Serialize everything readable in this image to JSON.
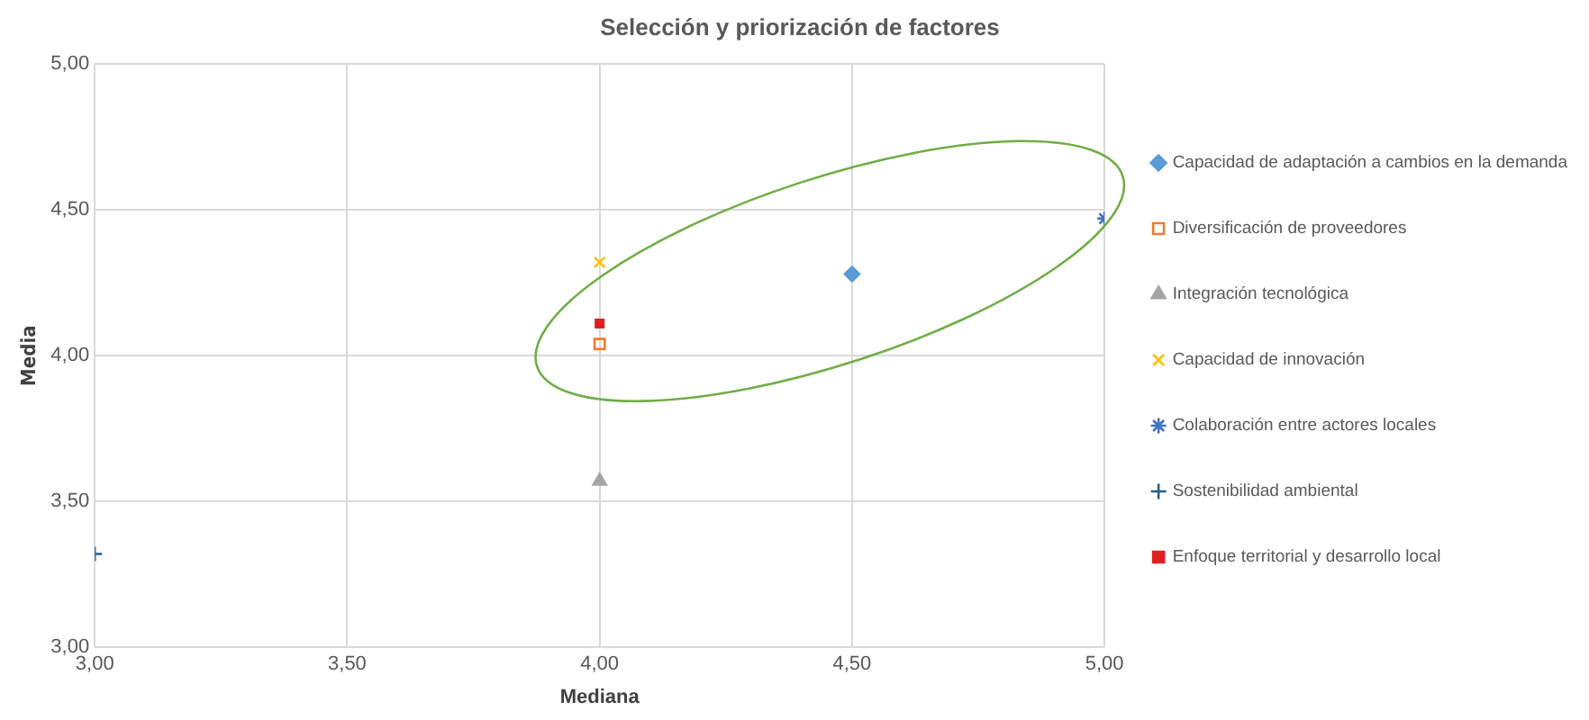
{
  "chart_data": {
    "type": "scatter",
    "title": "Selección y priorización de factores",
    "xlabel": "Mediana",
    "ylabel": "Media",
    "xlim": [
      3,
      5
    ],
    "ylim": [
      3,
      5
    ],
    "xticks": [
      {
        "value": 3,
        "label": "3,00"
      },
      {
        "value": 3.5,
        "label": "3,50"
      },
      {
        "value": 4,
        "label": "4,00"
      },
      {
        "value": 4.5,
        "label": "4,50"
      },
      {
        "value": 5,
        "label": "5,00"
      }
    ],
    "yticks": [
      {
        "value": 3,
        "label": "3,00"
      },
      {
        "value": 3.5,
        "label": "3,50"
      },
      {
        "value": 4,
        "label": "4,00"
      },
      {
        "value": 4.5,
        "label": "4,50"
      },
      {
        "value": 5,
        "label": "5,00"
      }
    ],
    "grid": true,
    "legend": "right",
    "series": [
      {
        "name": "Capacidad de adaptación a cambios en la demanda",
        "color": "#5b9bd5",
        "marker": "diamond",
        "x": [
          4.5
        ],
        "values": [
          4.28
        ]
      },
      {
        "name": "Diversificación de proveedores",
        "color": "#ed7d31",
        "marker": "square",
        "x": [
          4
        ],
        "values": [
          4.04
        ]
      },
      {
        "name": "Integración tecnológica",
        "color": "#a5a5a5",
        "marker": "triangle",
        "x": [
          4
        ],
        "values": [
          3.57
        ]
      },
      {
        "name": "Capacidad de innovación",
        "color": "#ffc000",
        "marker": "cross",
        "x": [
          4
        ],
        "values": [
          4.32
        ]
      },
      {
        "name": "Colaboración entre actores locales",
        "color": "#4472c4",
        "marker": "cross",
        "x": [
          5
        ],
        "values": [
          4.47
        ]
      },
      {
        "name": "Sostenibilidad ambiental",
        "color": "#255e91",
        "marker": "cross",
        "x": [
          3
        ],
        "values": [
          3.32
        ]
      },
      {
        "name": "Enfoque territorial y desarrollo local",
        "color": "#e02020",
        "marker": "square",
        "x": [
          4
        ],
        "values": [
          4.11
        ]
      }
    ]
  }
}
